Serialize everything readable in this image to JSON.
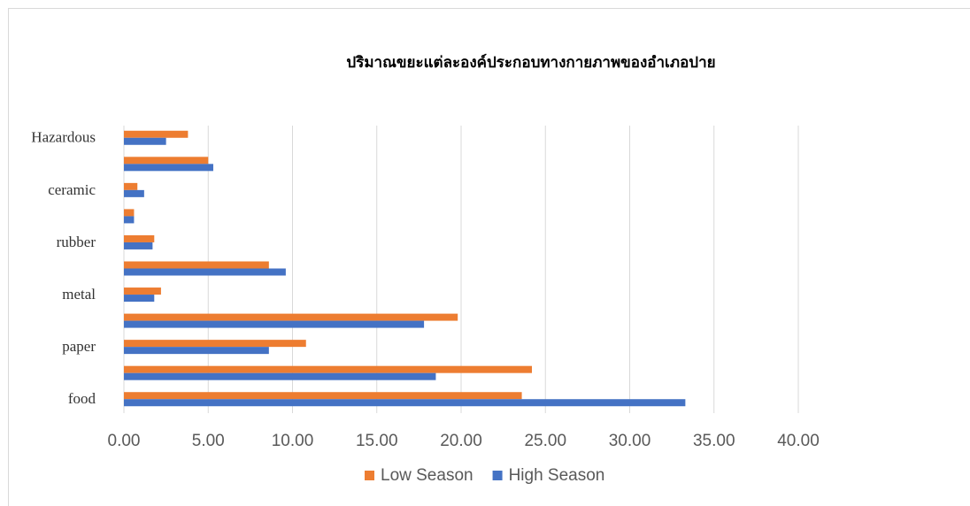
{
  "chart_data": {
    "type": "bar",
    "orientation": "horizontal",
    "title": "ปริมาณขยะแต่ละองค์ประกอบทางกายภาพของอำเภอปาย",
    "categories": [
      "food",
      null,
      "paper",
      null,
      "metal",
      null,
      "rubber",
      null,
      "ceramic",
      null,
      "Hazardous"
    ],
    "series": [
      {
        "name": "Low Season",
        "color": "#ed7d31",
        "values": [
          23.6,
          24.2,
          10.8,
          19.8,
          2.2,
          8.6,
          1.8,
          0.6,
          0.8,
          5.0,
          3.8
        ]
      },
      {
        "name": "High Season",
        "color": "#4472c4",
        "values": [
          33.3,
          18.5,
          8.6,
          17.8,
          1.8,
          9.6,
          1.7,
          0.6,
          1.2,
          5.3,
          2.5
        ]
      }
    ],
    "xlim": [
      0,
      40
    ],
    "xticks": [
      {
        "value": 0,
        "label": "0.00"
      },
      {
        "value": 5,
        "label": "5.00"
      },
      {
        "value": 10,
        "label": "10.00"
      },
      {
        "value": 15,
        "label": "15.00"
      },
      {
        "value": 20,
        "label": "20.00"
      },
      {
        "value": 25,
        "label": "25.00"
      },
      {
        "value": 30,
        "label": "30.00"
      },
      {
        "value": 35,
        "label": "35.00"
      },
      {
        "value": 40,
        "label": "40.00"
      }
    ],
    "grid": true,
    "legend": "bottom"
  }
}
